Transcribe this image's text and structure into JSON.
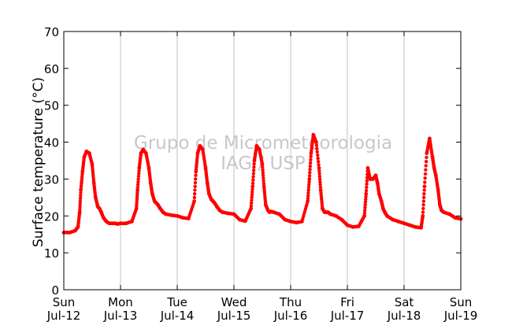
{
  "chart_data": {
    "type": "scatter",
    "title": "",
    "ylabel": "Surface temperature (°C)",
    "xlabel": "",
    "ylim": [
      0,
      70
    ],
    "yticks": [
      0,
      10,
      20,
      30,
      40,
      50,
      60,
      70
    ],
    "xlim": [
      0,
      7
    ],
    "grid": "vertical lines at day ticks",
    "legend": "none",
    "watermark": [
      "Grupo de Micrometeorologia",
      "IAG / USP"
    ],
    "x_tick_labels": [
      {
        "day": "Sun",
        "date": "Jul-12"
      },
      {
        "day": "Mon",
        "date": "Jul-13"
      },
      {
        "day": "Tue",
        "date": "Jul-14"
      },
      {
        "day": "Wed",
        "date": "Jul-15"
      },
      {
        "day": "Thu",
        "date": "Jul-16"
      },
      {
        "day": "Fri",
        "date": "Jul-17"
      },
      {
        "day": "Sat",
        "date": "Jul-18"
      },
      {
        "day": "Sun",
        "date": "Jul-19"
      }
    ],
    "series": [
      {
        "color": "#ff0000",
        "x_unit": "days since Jul-12 00:00",
        "x": [
          0,
          0.1,
          0.2,
          0.25,
          0.28,
          0.3,
          0.33,
          0.36,
          0.4,
          0.45,
          0.5,
          0.53,
          0.56,
          0.6,
          0.63,
          0.66,
          0.7,
          0.75,
          0.8,
          0.85,
          0.9,
          0.95,
          1.0,
          1.1,
          1.2,
          1.28,
          1.3,
          1.33,
          1.36,
          1.4,
          1.45,
          1.5,
          1.53,
          1.56,
          1.6,
          1.63,
          1.66,
          1.7,
          1.75,
          1.8,
          1.9,
          2.0,
          2.1,
          2.2,
          2.3,
          2.33,
          2.36,
          2.4,
          2.45,
          2.5,
          2.53,
          2.56,
          2.6,
          2.63,
          2.66,
          2.7,
          2.75,
          2.8,
          2.9,
          3.0,
          3.1,
          3.2,
          3.3,
          3.33,
          3.36,
          3.4,
          3.45,
          3.5,
          3.53,
          3.56,
          3.6,
          3.63,
          3.66,
          3.7,
          3.8,
          3.9,
          4.0,
          4.1,
          4.2,
          4.3,
          4.33,
          4.36,
          4.4,
          4.45,
          4.5,
          4.53,
          4.56,
          4.6,
          4.63,
          4.66,
          4.7,
          4.8,
          4.9,
          5.0,
          5.1,
          5.2,
          5.3,
          5.33,
          5.36,
          5.4,
          5.45,
          5.5,
          5.53,
          5.56,
          5.6,
          5.63,
          5.66,
          5.7,
          5.8,
          5.9,
          6.0,
          6.1,
          6.2,
          6.3,
          6.33,
          6.36,
          6.4,
          6.45,
          6.5,
          6.53,
          6.56,
          6.6,
          6.63,
          6.66,
          6.7,
          6.8,
          6.9,
          7.0
        ],
        "y": [
          15.5,
          15.5,
          16,
          17,
          21,
          27,
          32,
          36,
          37.5,
          37,
          34,
          29,
          25,
          22.5,
          22,
          21,
          19.5,
          18.5,
          18,
          18,
          18,
          17.8,
          18,
          18,
          18.5,
          22,
          27,
          33,
          37,
          38,
          37,
          33,
          29,
          26,
          24,
          23.5,
          23,
          22,
          21,
          20.5,
          20.2,
          20,
          19.5,
          19.3,
          24,
          32,
          37,
          39,
          38,
          33,
          29,
          26,
          24.5,
          24,
          23.5,
          22.5,
          21.5,
          21,
          20.7,
          20.5,
          19,
          18.6,
          22,
          28,
          35,
          39,
          38,
          34,
          28,
          23,
          21.5,
          21,
          21.2,
          21,
          20.5,
          19,
          18.5,
          18.2,
          18.5,
          24,
          30,
          37,
          42,
          40,
          33,
          27,
          22,
          21,
          21,
          21,
          20.5,
          20,
          19,
          17.5,
          17,
          17.2,
          20,
          26,
          33,
          30,
          30,
          31,
          29,
          26,
          24,
          22,
          21,
          20,
          19,
          18.5,
          18,
          17.5,
          17,
          16.8,
          20,
          28,
          37,
          41,
          36,
          33,
          31,
          27,
          23,
          21.5,
          21,
          20.5,
          19.5,
          19.2
        ]
      }
    ]
  }
}
